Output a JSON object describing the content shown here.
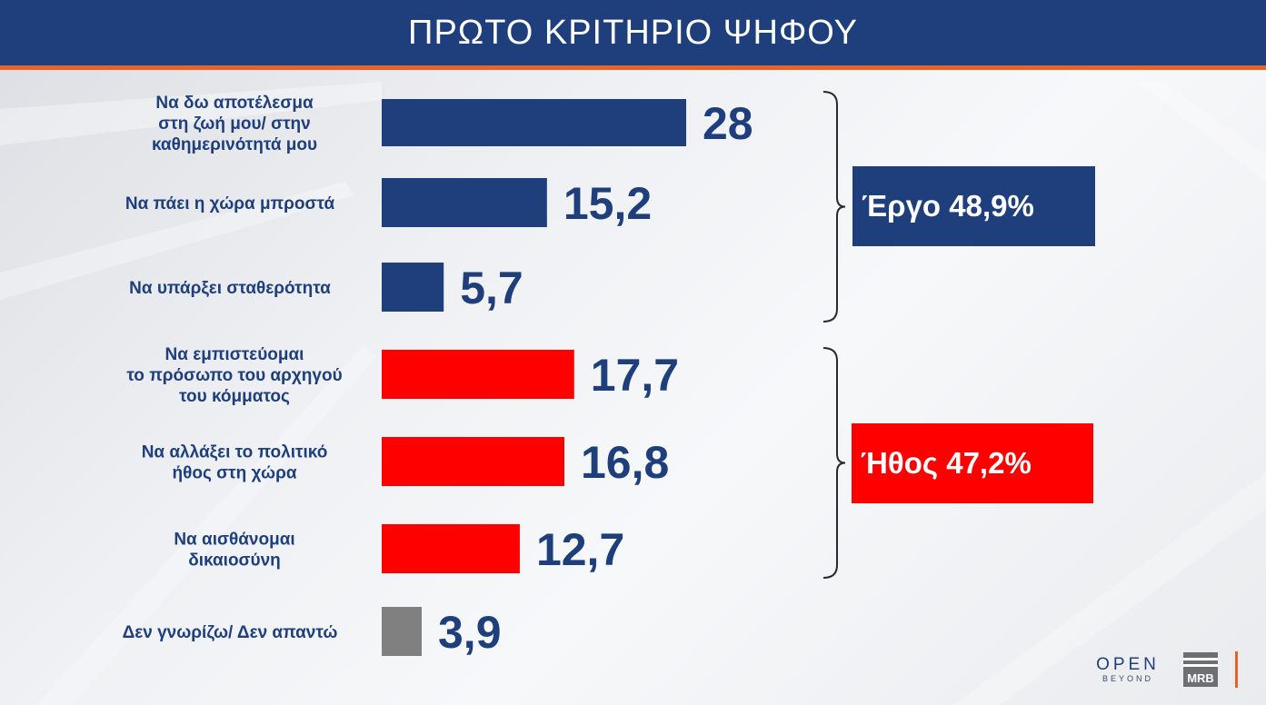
{
  "header": {
    "title": "ΠΡΩΤΟ ΚΡΙΤΗΡΙΟ ΨΗΦΟΥ"
  },
  "colors": {
    "header_bg": "#1e3f7c",
    "accent": "#e8632a",
    "blue": "#1e3f7c",
    "red": "#ff0000",
    "gray": "#808080"
  },
  "chart_data": {
    "type": "bar",
    "orientation": "horizontal",
    "title": "ΠΡΩΤΟ ΚΡΙΤΗΡΙΟ ΨΗΦΟΥ",
    "xlim": [
      0,
      28
    ],
    "grid": false,
    "bars": [
      {
        "label": [
          "Να δω αποτέλεσμα",
          "στη ζωή μου/ στην",
          "καθημερινότητά μου"
        ],
        "value": 28,
        "value_label": "28",
        "color": "#1e3f7c"
      },
      {
        "label": [
          "Να πάει η χώρα μπροστά"
        ],
        "value": 15.2,
        "value_label": "15,2",
        "color": "#1e3f7c"
      },
      {
        "label": [
          "Να υπάρξει σταθερότητα"
        ],
        "value": 5.7,
        "value_label": "5,7",
        "color": "#1e3f7c"
      },
      {
        "label": [
          "Να εμπιστεύομαι",
          "το πρόσωπο του αρχηγού",
          "του κόμματος"
        ],
        "value": 17.7,
        "value_label": "17,7",
        "color": "#ff0000"
      },
      {
        "label": [
          "Να αλλάξει το πολιτικό",
          "ήθος στη χώρα"
        ],
        "value": 16.8,
        "value_label": "16,8",
        "color": "#ff0000"
      },
      {
        "label": [
          "Να αισθάνομαι",
          "δικαιοσύνη"
        ],
        "value": 12.7,
        "value_label": "12,7",
        "color": "#ff0000"
      },
      {
        "label": [
          "Δεν γνωρίζω/ Δεν απαντώ"
        ],
        "value": 3.9,
        "value_label": "3,9",
        "color": "#808080"
      }
    ],
    "groups": [
      {
        "label": "Έργο 48,9%",
        "value": 48.9,
        "bars": [
          0,
          1,
          2
        ],
        "color": "#1e3f7c"
      },
      {
        "label": "Ήθος 47,2%",
        "value": 47.2,
        "bars": [
          3,
          4,
          5
        ],
        "color": "#ff0000"
      }
    ]
  },
  "logos": {
    "open_main": "OPEN",
    "open_sub": "BEYOND",
    "mrb": "MRB"
  }
}
